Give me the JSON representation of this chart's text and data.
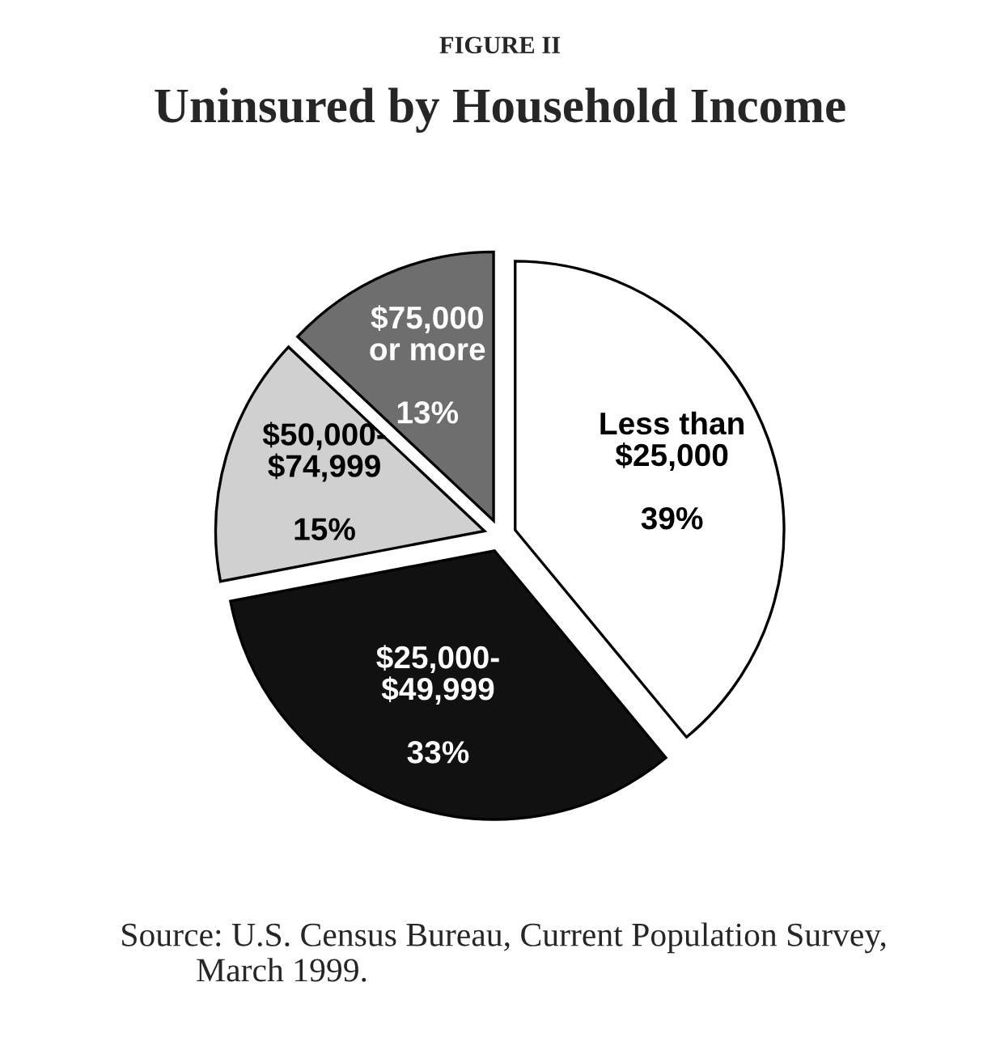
{
  "chart_data": {
    "type": "pie",
    "subtitle": "FIGURE II",
    "title": "Uninsured by Household Income",
    "categories": [
      "Less than\n$25,000",
      "$25,000-\n$49,999",
      "$50,000-\n$74,999",
      "$75,000\nor more"
    ],
    "values": [
      39,
      33,
      15,
      13
    ],
    "colors": [
      "#ffffff",
      "#111111",
      "#d0d0d0",
      "#6e6e6e"
    ],
    "value_labels": [
      "39%",
      "33%",
      "15%",
      "13%"
    ],
    "annotations": [
      "Source: U.S. Census Bureau, Current Population Survey,\n         March 1999."
    ]
  }
}
